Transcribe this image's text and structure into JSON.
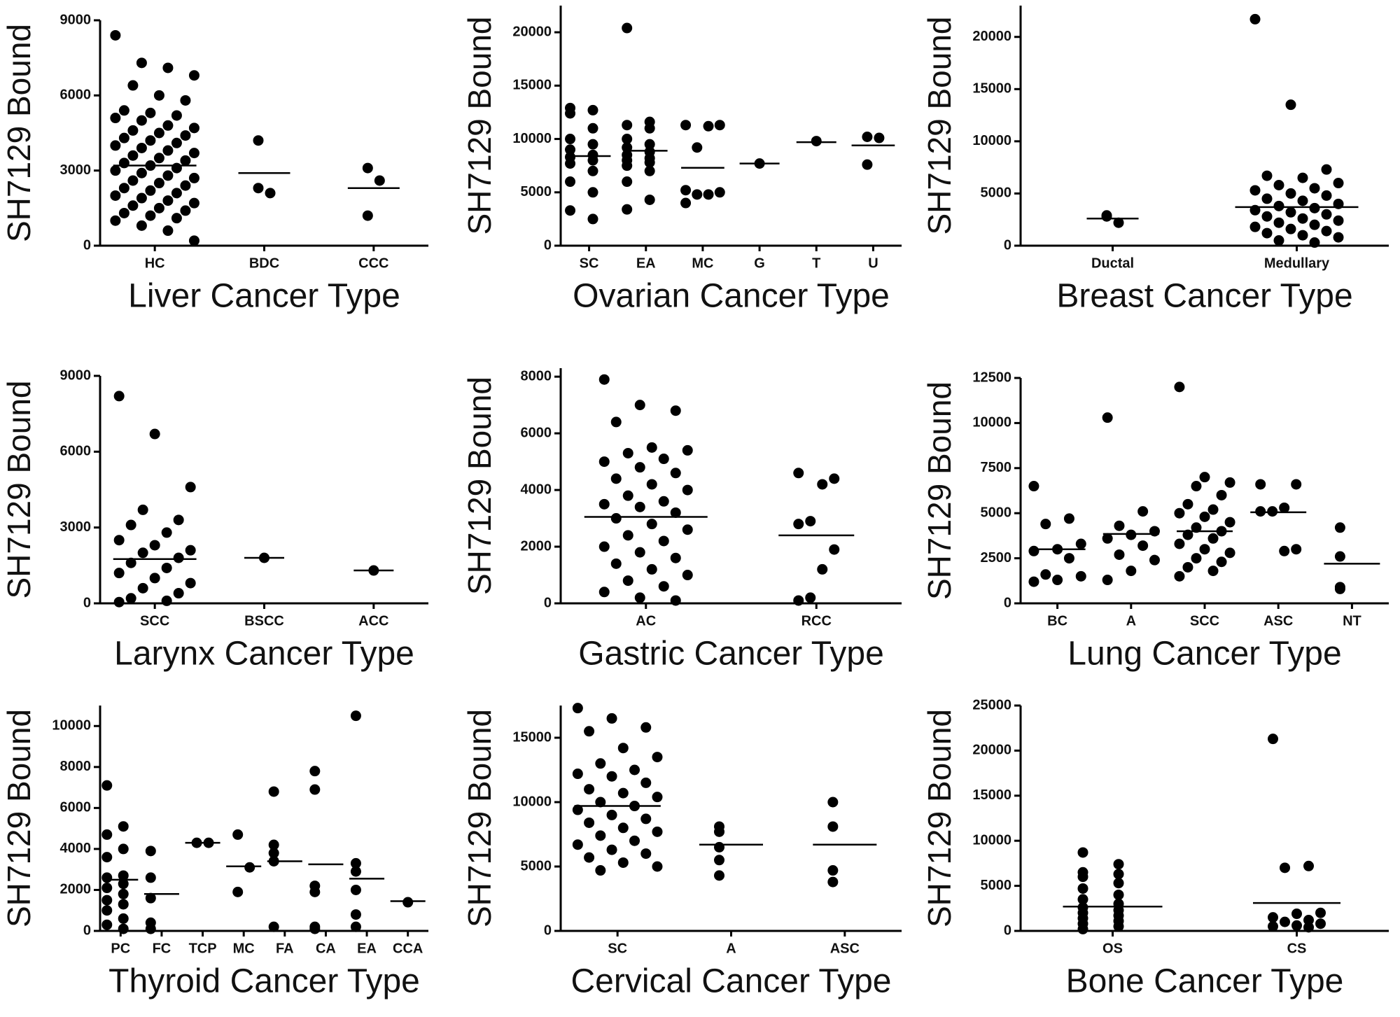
{
  "chart_data": [
    {
      "type": "dot",
      "y_label": "SH7129 Bound",
      "x_label": "Liver Cancer Type",
      "categories": [
        "HC",
        "BDC",
        "CCC"
      ],
      "ylim": [
        0,
        9000
      ],
      "yticks": [
        0,
        3000,
        6000,
        9000
      ],
      "groups": [
        [
          8400,
          7300,
          7100,
          6800,
          6400,
          6000,
          5800,
          5400,
          5300,
          5200,
          5100,
          5000,
          4800,
          4700,
          4600,
          4500,
          4400,
          4300,
          4200,
          4100,
          4000,
          3900,
          3800,
          3700,
          3600,
          3500,
          3400,
          3300,
          3200,
          3100,
          3000,
          2900,
          2800,
          2700,
          2600,
          2500,
          2400,
          2300,
          2200,
          2100,
          2000,
          1900,
          1800,
          1700,
          1600,
          1500,
          1400,
          1300,
          1200,
          1100,
          1000,
          800,
          600,
          200
        ],
        [
          4200,
          2100,
          2300
        ],
        [
          3100,
          2600,
          1200
        ]
      ],
      "means": [
        3200,
        2900,
        2300
      ],
      "color": "#000000"
    },
    {
      "type": "dot",
      "y_label": "SH7129 Bound",
      "x_label": "Ovarian Cancer Type",
      "categories": [
        "SC",
        "EA",
        "MC",
        "G",
        "T",
        "U"
      ],
      "ylim": [
        0,
        22500
      ],
      "yticks": [
        0,
        5000,
        10000,
        15000,
        20000
      ],
      "groups": [
        [
          12900,
          12700,
          12400,
          11000,
          10000,
          9500,
          9000,
          8500,
          8300,
          8000,
          7700,
          7000,
          6000,
          5000,
          3300,
          2500
        ],
        [
          20400,
          11600,
          11300,
          11000,
          10000,
          9500,
          9200,
          8800,
          8500,
          8200,
          8000,
          7800,
          7500,
          7000,
          6000,
          4300,
          3400
        ],
        [
          11300,
          11300,
          11200,
          9200,
          5200,
          5000,
          4800,
          4800,
          4000
        ],
        [
          7700
        ],
        [
          9800
        ],
        [
          10200,
          10100,
          7600
        ]
      ],
      "means": [
        8400,
        8900,
        7300,
        7700,
        9700,
        9400
      ],
      "color": "#000000"
    },
    {
      "type": "dot",
      "y_label": "SH7129 Bound",
      "x_label": "Breast Cancer Type",
      "categories": [
        "Ductal",
        "Medullary"
      ],
      "ylim": [
        0,
        23000
      ],
      "yticks": [
        0,
        5000,
        10000,
        15000,
        20000
      ],
      "groups": [
        [
          2800,
          2200,
          2900
        ],
        [
          21700,
          13500,
          7300,
          6700,
          6500,
          6000,
          5800,
          5500,
          5300,
          5000,
          4800,
          4500,
          4300,
          4000,
          3800,
          3600,
          3400,
          3200,
          3000,
          2800,
          2600,
          2400,
          2200,
          2000,
          1800,
          1600,
          1400,
          1200,
          1000,
          800,
          500,
          300
        ]
      ],
      "means": [
        2600,
        3700
      ],
      "color": "#000000"
    },
    {
      "type": "dot",
      "y_label": "SH7129 Bound",
      "x_label": "Larynx Cancer Type",
      "categories": [
        "SCC",
        "BSCC",
        "ACC"
      ],
      "ylim": [
        0,
        9000
      ],
      "yticks": [
        0,
        3000,
        6000,
        9000
      ],
      "groups": [
        [
          8200,
          6700,
          4600,
          3700,
          3300,
          3100,
          2800,
          2500,
          2300,
          2100,
          2000,
          1800,
          1600,
          1400,
          1200,
          1000,
          800,
          600,
          400,
          200,
          100,
          50
        ],
        [
          1800
        ],
        [
          1300
        ]
      ],
      "means": [
        1750,
        1800,
        1300
      ],
      "color": "#000000"
    },
    {
      "type": "dot",
      "y_label": "SH7129 Bound",
      "x_label": "Gastric Cancer Type",
      "categories": [
        "AC",
        "RCC"
      ],
      "ylim": [
        0,
        8300
      ],
      "yticks": [
        0,
        2000,
        4000,
        6000,
        8000
      ],
      "groups": [
        [
          7900,
          7000,
          6800,
          6400,
          5500,
          5400,
          5300,
          5100,
          5000,
          4800,
          4600,
          4400,
          4200,
          4000,
          3800,
          3600,
          3500,
          3400,
          3200,
          3000,
          2800,
          2600,
          2400,
          2200,
          2000,
          1800,
          1600,
          1400,
          1200,
          1000,
          800,
          600,
          400,
          200,
          100
        ],
        [
          4600,
          4400,
          4200,
          2900,
          2800,
          1900,
          1200,
          200,
          100
        ]
      ],
      "means": [
        3050,
        2400
      ],
      "color": "#000000"
    },
    {
      "type": "dot",
      "y_label": "SH7129 Bound",
      "x_label": "Lung Cancer Type",
      "categories": [
        "BC",
        "A",
        "SCC",
        "ASC",
        "NT"
      ],
      "ylim": [
        0,
        12500
      ],
      "yticks": [
        0,
        2500,
        5000,
        7500,
        10000,
        12500
      ],
      "groups": [
        [
          6500,
          4700,
          4400,
          3300,
          3000,
          2900,
          2500,
          1600,
          1500,
          1300,
          1200
        ],
        [
          10300,
          5100,
          4300,
          4000,
          3800,
          3600,
          3200,
          2700,
          2400,
          1800,
          1300
        ],
        [
          12000,
          7000,
          6700,
          6500,
          6000,
          5500,
          5200,
          5000,
          4800,
          4500,
          4200,
          4000,
          3800,
          3600,
          3300,
          3000,
          2800,
          2500,
          2300,
          2000,
          1800,
          1500
        ],
        [
          6600,
          6600,
          5300,
          5100,
          5100,
          3000,
          2900
        ],
        [
          4200,
          2600,
          900,
          800
        ]
      ],
      "means": [
        3000,
        3850,
        4000,
        5050,
        2200
      ],
      "color": "#000000"
    },
    {
      "type": "dot",
      "y_label": "SH7129 Bound",
      "x_label": "Thyroid Cancer Type",
      "categories": [
        "PC",
        "FC",
        "TCP",
        "MC",
        "FA",
        "CA",
        "EA",
        "CCA"
      ],
      "ylim": [
        0,
        11000
      ],
      "yticks": [
        0,
        2000,
        4000,
        6000,
        8000,
        10000
      ],
      "groups": [
        [
          7100,
          5100,
          4700,
          4000,
          3600,
          2700,
          2600,
          2300,
          2100,
          1800,
          1500,
          1300,
          1000,
          600,
          300,
          100
        ],
        [
          3900,
          2600,
          1600,
          400,
          100
        ],
        [
          4300,
          4300
        ],
        [
          4700,
          3100,
          1900
        ],
        [
          6800,
          4200,
          3800,
          3400,
          200
        ],
        [
          7800,
          6900,
          2200,
          1900,
          200,
          100
        ],
        [
          10500,
          3300,
          2900,
          2000,
          800,
          200
        ],
        [
          1400
        ]
      ],
      "means": [
        2500,
        1800,
        4300,
        3150,
        3400,
        3250,
        2550,
        1450
      ],
      "color": "#000000"
    },
    {
      "type": "dot",
      "y_label": "SH7129 Bound",
      "x_label": "Cervical Cancer Type",
      "categories": [
        "SC",
        "A",
        "ASC"
      ],
      "ylim": [
        0,
        17500
      ],
      "yticks": [
        0,
        5000,
        10000,
        15000
      ],
      "groups": [
        [
          17300,
          16500,
          15800,
          15500,
          14200,
          13500,
          13000,
          12500,
          12200,
          12000,
          11500,
          11000,
          10700,
          10400,
          10000,
          9700,
          9400,
          9000,
          8700,
          8400,
          8000,
          7700,
          7400,
          7000,
          6700,
          6300,
          6000,
          5700,
          5300,
          5000,
          4700
        ],
        [
          8100,
          7700,
          6500,
          5500,
          4300
        ],
        [
          10000,
          8100,
          4700,
          3800
        ]
      ],
      "means": [
        9700,
        6700,
        6700
      ],
      "color": "#000000"
    },
    {
      "type": "dot",
      "y_label": "SH7129 Bound",
      "x_label": "Bone Cancer Type",
      "categories": [
        "OS",
        "CS"
      ],
      "ylim": [
        0,
        25000
      ],
      "yticks": [
        0,
        5000,
        10000,
        15000,
        20000,
        25000
      ],
      "groups": [
        [
          8700,
          7400,
          6500,
          6300,
          6000,
          5300,
          4700,
          4000,
          3500,
          3000,
          2600,
          2300,
          2000,
          1700,
          1400,
          1100,
          800,
          500,
          200
        ],
        [
          21300,
          7200,
          7000,
          2000,
          1900,
          1500,
          1200,
          1000,
          800,
          600,
          500,
          400
        ]
      ],
      "means": [
        2700,
        3100
      ],
      "color": "#000000"
    }
  ]
}
